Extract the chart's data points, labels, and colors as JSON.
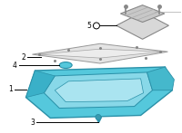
{
  "bg_color": "#ffffff",
  "pan_color_outer": "#55c8dc",
  "pan_color_inner": "#88d8e8",
  "pan_color_floor": "#aae4f0",
  "pan_edge": "#2a90a8",
  "gasket_color": "#e0e0e0",
  "gasket_edge": "#888888",
  "filter_color": "#d8d8d8",
  "filter_edge": "#888888",
  "line_color": "#000000",
  "figsize": [
    2.0,
    1.47
  ],
  "dpi": 100
}
